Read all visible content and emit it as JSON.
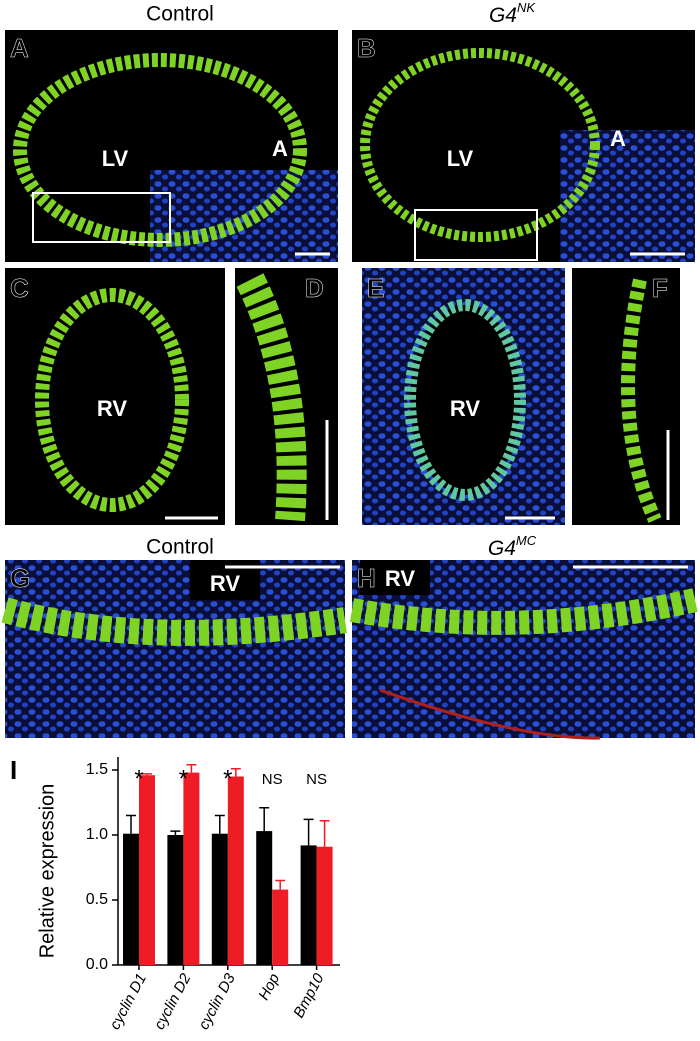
{
  "panels": [
    {
      "label": "A",
      "texts": [
        "LV",
        "A"
      ]
    },
    {
      "label": "B",
      "texts": [
        "LV",
        "A"
      ]
    },
    {
      "label": "C",
      "texts": [
        "RV"
      ]
    },
    {
      "label": "D",
      "texts": []
    },
    {
      "label": "E",
      "texts": [
        "RV"
      ]
    },
    {
      "label": "F",
      "texts": []
    },
    {
      "label": "G",
      "texts": [
        "RV"
      ]
    },
    {
      "label": "H",
      "texts": [
        "RV"
      ]
    }
  ],
  "headings": {
    "top_left": "Control",
    "top_right": {
      "base": "G4",
      "sup": "NK"
    },
    "bottom_left": "Control",
    "bottom_right": {
      "base": "G4",
      "sup": "MC"
    }
  },
  "chart_data": {
    "type": "bar",
    "panel_label": "I",
    "ylabel": "Relative expression",
    "categories": [
      "cyclin D1",
      "cyclin D2",
      "cyclin D3",
      "Hop",
      "Bmp10"
    ],
    "annotations": [
      "*",
      "*",
      "*",
      "NS",
      "NS"
    ],
    "series": [
      {
        "color": "#000000",
        "values": [
          1.01,
          1.0,
          1.01,
          1.03,
          0.92
        ],
        "errors": [
          0.14,
          0.03,
          0.14,
          0.18,
          0.2
        ]
      },
      {
        "color": "#ee1c25",
        "values": [
          1.46,
          1.48,
          1.45,
          0.58,
          0.91
        ],
        "errors": [
          0.01,
          0.06,
          0.06,
          0.07,
          0.2
        ]
      }
    ],
    "ylim": [
      0,
      1.6
    ],
    "yticks": [
      {
        "value": 0,
        "label": "0.0"
      },
      0.5,
      {
        "value": 1,
        "label": "1.0"
      },
      1.5
    ]
  }
}
